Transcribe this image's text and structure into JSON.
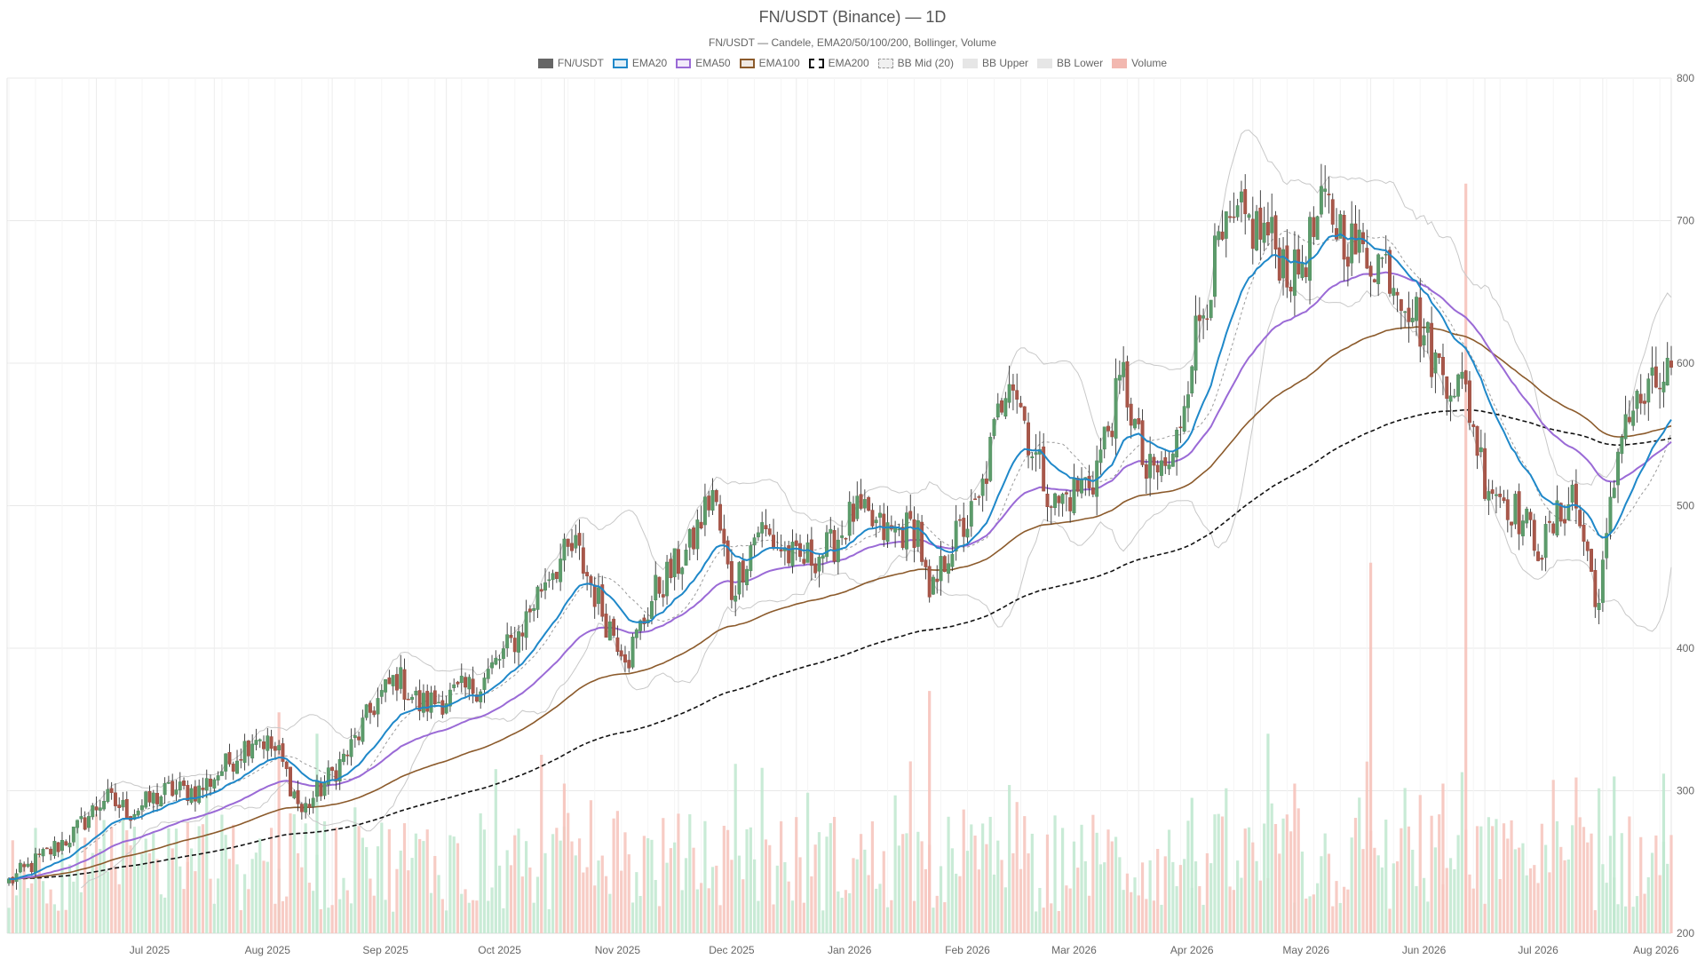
{
  "chart_data": {
    "type": "candlestick",
    "title": "FN/USDT (Binance) — 1D",
    "subtitle": "FN/USDT — Candele, EMA20/50/100/200, Bollinger, Volume",
    "legend": [
      {
        "label": "FN/USDT",
        "color": "#666666",
        "style": "solid-fill"
      },
      {
        "label": "EMA20",
        "color": "#1f88c9",
        "style": "line"
      },
      {
        "label": "EMA50",
        "color": "#9a6ad6",
        "style": "line"
      },
      {
        "label": "EMA100",
        "color": "#8b5a2b",
        "style": "line"
      },
      {
        "label": "EMA200",
        "color": "#111111",
        "style": "dashed"
      },
      {
        "label": "BB Mid (20)",
        "color": "#9a9a9a",
        "style": "dotted"
      },
      {
        "label": "BB Upper",
        "color": "#c8c8c8",
        "style": "light"
      },
      {
        "label": "BB Lower",
        "color": "#c8c8c8",
        "style": "light"
      },
      {
        "label": "Volume",
        "color": "#f2b8b0",
        "style": "volume"
      }
    ],
    "x_axis": {
      "start": "2025-06-08",
      "end": "2026-08-19",
      "tick_labels": [
        "Jul 2025",
        "Aug 2025",
        "Sep 2025",
        "Oct 2025",
        "Nov 2025",
        "Dec 2025",
        "Jan 2026",
        "Feb 2026",
        "Mar 2026",
        "Apr 2026",
        "May 2026",
        "Jun 2026",
        "Jul 2026",
        "Aug 2026"
      ]
    },
    "y_axis": {
      "min": 200,
      "max": 800,
      "ticks": [
        200,
        300,
        400,
        500,
        600,
        700,
        800
      ],
      "side": "right"
    },
    "grid": true,
    "legend_position": "top-center",
    "price_anchors": [
      [
        "2025-06-08",
        236
      ],
      [
        "2025-06-15",
        250
      ],
      [
        "2025-06-25",
        270
      ],
      [
        "2025-07-03",
        295
      ],
      [
        "2025-07-10",
        285
      ],
      [
        "2025-07-20",
        300
      ],
      [
        "2025-07-28",
        300
      ],
      [
        "2025-08-05",
        320
      ],
      [
        "2025-08-12",
        340
      ],
      [
        "2025-08-18",
        325
      ],
      [
        "2025-08-24",
        285
      ],
      [
        "2025-08-30",
        305
      ],
      [
        "2025-09-06",
        330
      ],
      [
        "2025-09-12",
        360
      ],
      [
        "2025-09-18",
        380
      ],
      [
        "2025-09-24",
        360
      ],
      [
        "2025-10-01",
        365
      ],
      [
        "2025-10-10",
        375
      ],
      [
        "2025-10-20",
        410
      ],
      [
        "2025-10-28",
        455
      ],
      [
        "2025-11-04",
        470
      ],
      [
        "2025-11-12",
        420
      ],
      [
        "2025-11-18",
        395
      ],
      [
        "2025-11-25",
        440
      ],
      [
        "2025-12-04",
        470
      ],
      [
        "2025-12-10",
        510
      ],
      [
        "2025-12-15",
        440
      ],
      [
        "2025-12-22",
        485
      ],
      [
        "2026-01-01",
        460
      ],
      [
        "2026-01-10",
        470
      ],
      [
        "2026-01-16",
        495
      ],
      [
        "2026-01-25",
        480
      ],
      [
        "2026-02-02",
        485
      ],
      [
        "2026-02-05",
        430
      ],
      [
        "2026-02-10",
        470
      ],
      [
        "2026-02-18",
        500
      ],
      [
        "2026-02-26",
        600
      ],
      [
        "2026-03-04",
        540
      ],
      [
        "2026-03-10",
        500
      ],
      [
        "2026-03-20",
        520
      ],
      [
        "2026-03-28",
        590
      ],
      [
        "2026-04-03",
        520
      ],
      [
        "2026-04-10",
        530
      ],
      [
        "2026-04-15",
        610
      ],
      [
        "2026-04-22",
        680
      ],
      [
        "2026-04-28",
        700
      ],
      [
        "2026-05-05",
        690
      ],
      [
        "2026-05-12",
        660
      ],
      [
        "2026-05-20",
        710
      ],
      [
        "2026-05-28",
        680
      ],
      [
        "2026-06-05",
        670
      ],
      [
        "2026-06-12",
        640
      ],
      [
        "2026-06-18",
        600
      ],
      [
        "2026-06-26",
        580
      ],
      [
        "2026-07-01",
        520
      ],
      [
        "2026-07-08",
        500
      ],
      [
        "2026-07-16",
        470
      ],
      [
        "2026-07-24",
        510
      ],
      [
        "2026-07-31",
        430
      ],
      [
        "2026-08-06",
        560
      ],
      [
        "2026-08-12",
        575
      ],
      [
        "2026-08-19",
        595
      ]
    ],
    "volume_bars": [
      [
        "2025-07-25",
        250,
        "down"
      ],
      [
        "2025-08-18",
        355,
        "down"
      ],
      [
        "2025-08-28",
        340,
        "up"
      ],
      [
        "2025-11-01",
        305,
        "down"
      ],
      [
        "2026-02-05",
        370,
        "down"
      ],
      [
        "2026-04-15",
        295,
        "up"
      ],
      [
        "2026-05-05",
        340,
        "up"
      ],
      [
        "2026-05-12",
        305,
        "down"
      ],
      [
        "2026-06-01",
        460,
        "down"
      ],
      [
        "2026-06-20",
        305,
        "down"
      ],
      [
        "2026-06-26",
        726,
        "down"
      ],
      [
        "2026-08-04",
        310,
        "up"
      ],
      [
        "2026-08-17",
        312,
        "up"
      ]
    ]
  }
}
